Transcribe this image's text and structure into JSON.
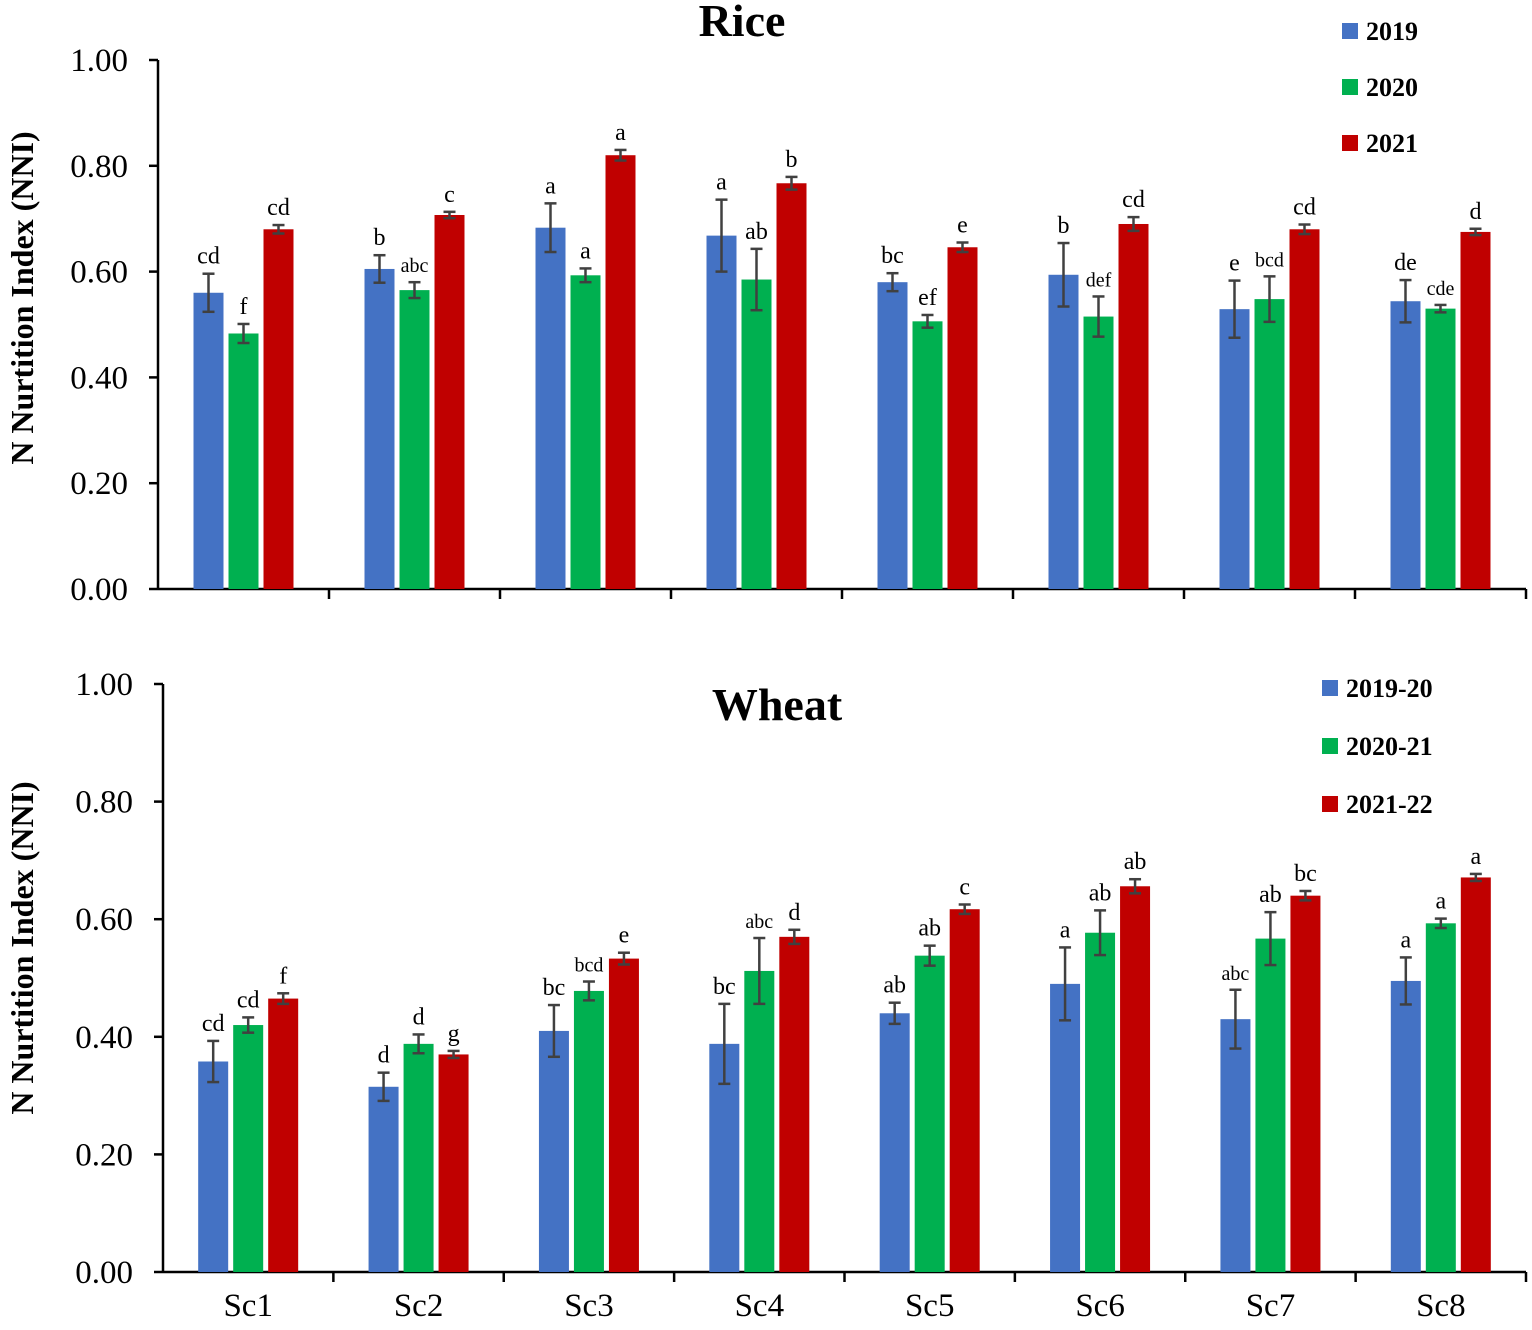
{
  "chart_data": [
    {
      "type": "bar",
      "title": "Rice",
      "ylabel": "N Nurtition Index (NNI)",
      "xlabel": "",
      "ylim": [
        0,
        1.0
      ],
      "yticks": [
        "0.00",
        "0.20",
        "0.40",
        "0.60",
        "0.80",
        "1.00"
      ],
      "categories": [
        "Sc1",
        "Sc2",
        "Sc3",
        "Sc4",
        "Sc5",
        "Sc6",
        "Sc7",
        "Sc8"
      ],
      "show_category_labels": false,
      "legend_position": "top-right",
      "series": [
        {
          "name": "2019",
          "color": "#4472C4",
          "values": [
            0.56,
            0.605,
            0.683,
            0.668,
            0.58,
            0.594,
            0.529,
            0.544
          ],
          "errors": [
            0.036,
            0.026,
            0.046,
            0.068,
            0.017,
            0.06,
            0.054,
            0.04
          ],
          "letters": [
            "cd",
            "b",
            "a",
            "a",
            "bc",
            "b",
            "e",
            "de"
          ]
        },
        {
          "name": "2020",
          "color": "#00B050",
          "values": [
            0.483,
            0.565,
            0.593,
            0.585,
            0.506,
            0.515,
            0.548,
            0.53
          ],
          "errors": [
            0.018,
            0.015,
            0.013,
            0.058,
            0.012,
            0.038,
            0.043,
            0.007
          ],
          "letters": [
            "f",
            "abc",
            "a",
            "ab",
            "ef",
            "def",
            "bcd",
            "cde"
          ]
        },
        {
          "name": "2021",
          "color": "#C00000",
          "values": [
            0.68,
            0.707,
            0.82,
            0.767,
            0.646,
            0.69,
            0.68,
            0.675
          ],
          "errors": [
            0.008,
            0.006,
            0.01,
            0.012,
            0.009,
            0.013,
            0.009,
            0.006
          ],
          "letters": [
            "cd",
            "c",
            "a",
            "b",
            "e",
            "cd",
            "cd",
            "d"
          ]
        }
      ]
    },
    {
      "type": "bar",
      "title": "Wheat",
      "ylabel": "N Nurtition Index (NNI)",
      "xlabel": "",
      "ylim": [
        0,
        1.0
      ],
      "yticks": [
        "0.00",
        "0.20",
        "0.40",
        "0.60",
        "0.80",
        "1.00"
      ],
      "categories": [
        "Sc1",
        "Sc2",
        "Sc3",
        "Sc4",
        "Sc5",
        "Sc6",
        "Sc7",
        "Sc8"
      ],
      "show_category_labels": true,
      "legend_position": "top-right",
      "series": [
        {
          "name": "2019-20",
          "color": "#4472C4",
          "values": [
            0.358,
            0.315,
            0.41,
            0.388,
            0.44,
            0.49,
            0.43,
            0.495
          ],
          "errors": [
            0.035,
            0.024,
            0.044,
            0.068,
            0.018,
            0.062,
            0.05,
            0.04
          ],
          "letters": [
            "cd",
            "d",
            "bc",
            "bc",
            "ab",
            "a",
            "abc",
            "a"
          ]
        },
        {
          "name": "2020-21",
          "color": "#00B050",
          "values": [
            0.42,
            0.388,
            0.478,
            0.512,
            0.538,
            0.577,
            0.567,
            0.593
          ],
          "errors": [
            0.013,
            0.016,
            0.016,
            0.056,
            0.017,
            0.038,
            0.045,
            0.008
          ],
          "letters": [
            "cd",
            "d",
            "bcd",
            "abc",
            "ab",
            "ab",
            "ab",
            "a"
          ]
        },
        {
          "name": "2021-22",
          "color": "#C00000",
          "values": [
            0.465,
            0.37,
            0.533,
            0.57,
            0.617,
            0.656,
            0.64,
            0.671
          ],
          "errors": [
            0.009,
            0.006,
            0.01,
            0.012,
            0.008,
            0.012,
            0.008,
            0.006
          ],
          "letters": [
            "f",
            "g",
            "e",
            "d",
            "c",
            "ab",
            "bc",
            "a"
          ]
        }
      ]
    }
  ]
}
